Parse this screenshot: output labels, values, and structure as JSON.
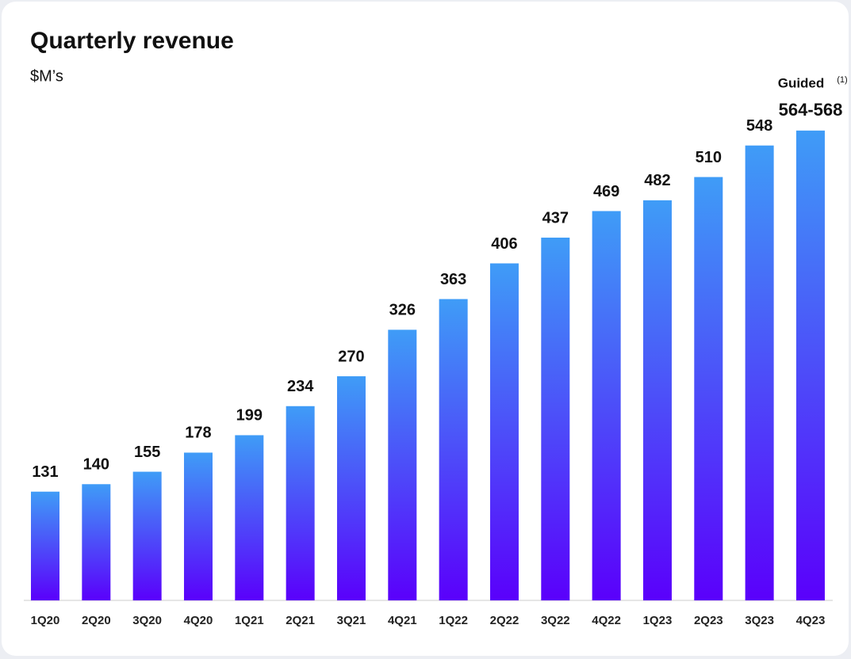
{
  "chart_data": {
    "type": "bar",
    "title": "Quarterly revenue",
    "subtitle": "$M’s",
    "categories": [
      "1Q20",
      "2Q20",
      "3Q20",
      "4Q20",
      "1Q21",
      "2Q21",
      "3Q21",
      "4Q21",
      "1Q22",
      "2Q22",
      "3Q22",
      "4Q22",
      "1Q23",
      "2Q23",
      "3Q23",
      "4Q23"
    ],
    "values": [
      131,
      140,
      155,
      178,
      199,
      234,
      270,
      326,
      363,
      406,
      437,
      469,
      482,
      510,
      548,
      566
    ],
    "value_labels": [
      "131",
      "140",
      "155",
      "178",
      "199",
      "234",
      "270",
      "326",
      "363",
      "406",
      "437",
      "469",
      "482",
      "510",
      "548",
      "564-568"
    ],
    "annotation": "Guided",
    "annotation_note": "(1)",
    "color_top": "#3f9cf7",
    "color_bottom": "#5a00fb"
  }
}
